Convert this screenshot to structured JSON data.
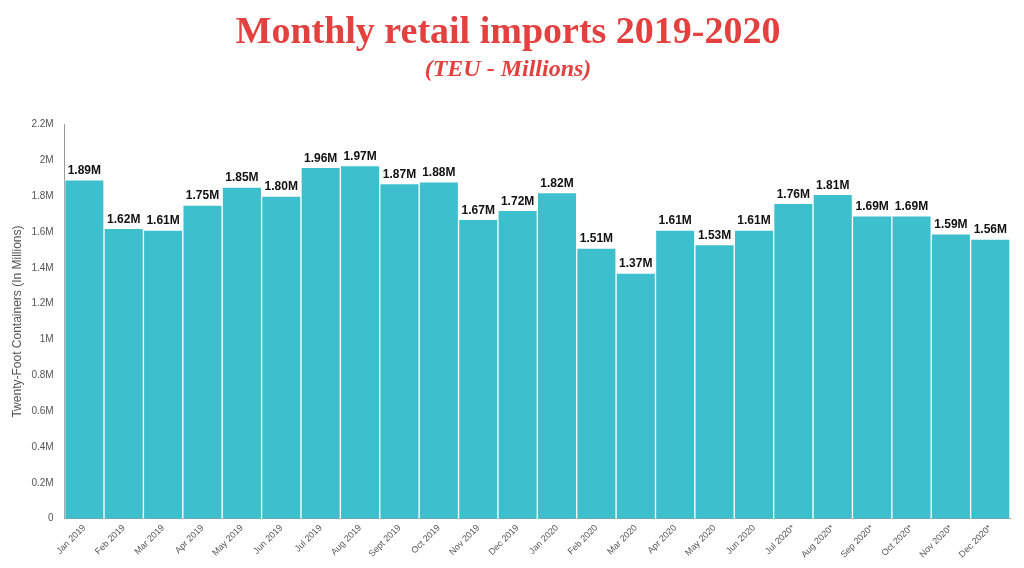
{
  "chart_data": {
    "type": "bar",
    "title": "Monthly retail imports 2019-2020",
    "subtitle": "(TEU - Millions)",
    "y_label": "Twenty-Foot Containers (In Millions)",
    "categories": [
      "Jan 2019",
      "Feb 2019",
      "Mar 2019",
      "Apr 2019",
      "May 2019",
      "Jun 2019",
      "Jul 2019",
      "Aug 2019",
      "Sept 2019",
      "Oct 2019",
      "Nov 2019",
      "Dec 2019",
      "Jan 2020",
      "Feb 2020",
      "Mar 2020",
      "Apr 2020",
      "May 2020",
      "Jun 2020",
      "Jul 2020*",
      "Aug 2020*",
      "Sep 2020*",
      "Oct 2020*",
      "Nov 2020*",
      "Dec 2020*"
    ],
    "values": [
      1.89,
      1.62,
      1.61,
      1.75,
      1.85,
      1.8,
      1.96,
      1.97,
      1.87,
      1.88,
      1.67,
      1.72,
      1.82,
      1.51,
      1.37,
      1.61,
      1.53,
      1.61,
      1.76,
      1.81,
      1.69,
      1.69,
      1.59,
      1.56
    ],
    "value_labels": [
      "1.89M",
      "1.62M",
      "1.61M",
      "1.75M",
      "1.85M",
      "1.80M",
      "1.96M",
      "1.97M",
      "1.87M",
      "1.88M",
      "1.67M",
      "1.72M",
      "1.82M",
      "1.51M",
      "1.37M",
      "1.61M",
      "1.53M",
      "1.61M",
      "1.76M",
      "1.81M",
      "1.69M",
      "1.69M",
      "1.59M",
      "1.56M"
    ],
    "color": "#3dbfce",
    "ylim": [
      0,
      2.2
    ],
    "yticks": [
      0,
      {
        "value": 0.2,
        "label": "0.2M"
      },
      {
        "value": 0.4,
        "label": "0.4M"
      },
      {
        "value": 0.6,
        "label": "0.6M"
      },
      {
        "value": 0.8,
        "label": "0.8M"
      },
      {
        "value": 1,
        "label": "1M"
      },
      {
        "value": 1.2,
        "label": "1.2M"
      },
      {
        "value": 1.4,
        "label": "1.4M"
      },
      {
        "value": 1.6,
        "label": "1.6M"
      },
      {
        "value": 1.8,
        "label": "1.8M"
      },
      {
        "value": 2,
        "label": "2M"
      },
      {
        "value": 2.2,
        "label": "2.2M"
      }
    ],
    "grid": false,
    "data_labels": true
  }
}
